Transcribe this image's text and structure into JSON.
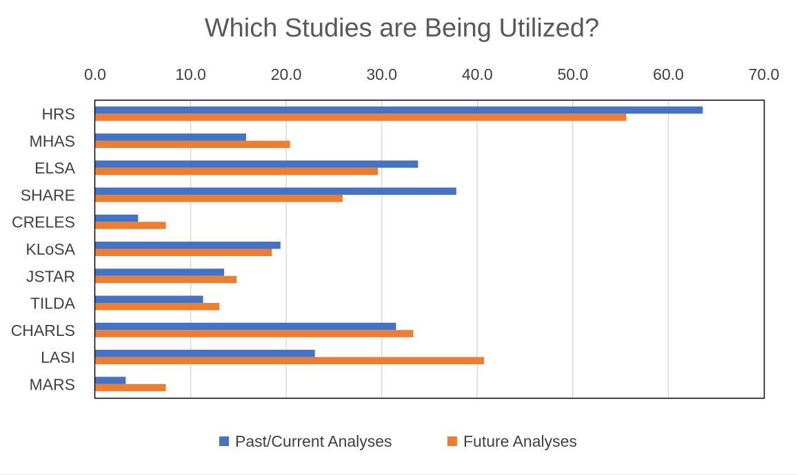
{
  "chart_data": {
    "type": "bar",
    "orientation": "horizontal",
    "title": "Which Studies are Being Utilized?",
    "xlabel": "",
    "ylabel": "",
    "xlim": [
      0,
      70
    ],
    "x_ticks": [
      "0.0",
      "10.0",
      "20.0",
      "30.0",
      "40.0",
      "50.0",
      "60.0",
      "70.0"
    ],
    "x_axis_position": "top",
    "grid": true,
    "legend_position": "bottom",
    "categories": [
      "HRS",
      "MHAS",
      "ELSA",
      "SHARE",
      "CRELES",
      "KLoSA",
      "JSTAR",
      "TILDA",
      "CHARLS",
      "LASI",
      "MARS"
    ],
    "series": [
      {
        "name": "Past/Current Analyses",
        "color": "#4472c4",
        "values": [
          63.6,
          15.8,
          33.8,
          37.8,
          4.5,
          19.4,
          13.5,
          11.3,
          31.5,
          23.0,
          3.2
        ]
      },
      {
        "name": "Future Analyses",
        "color": "#ed7d31",
        "values": [
          55.6,
          20.4,
          29.6,
          25.9,
          7.4,
          18.5,
          14.8,
          13.0,
          33.3,
          40.7,
          7.4
        ]
      }
    ]
  }
}
